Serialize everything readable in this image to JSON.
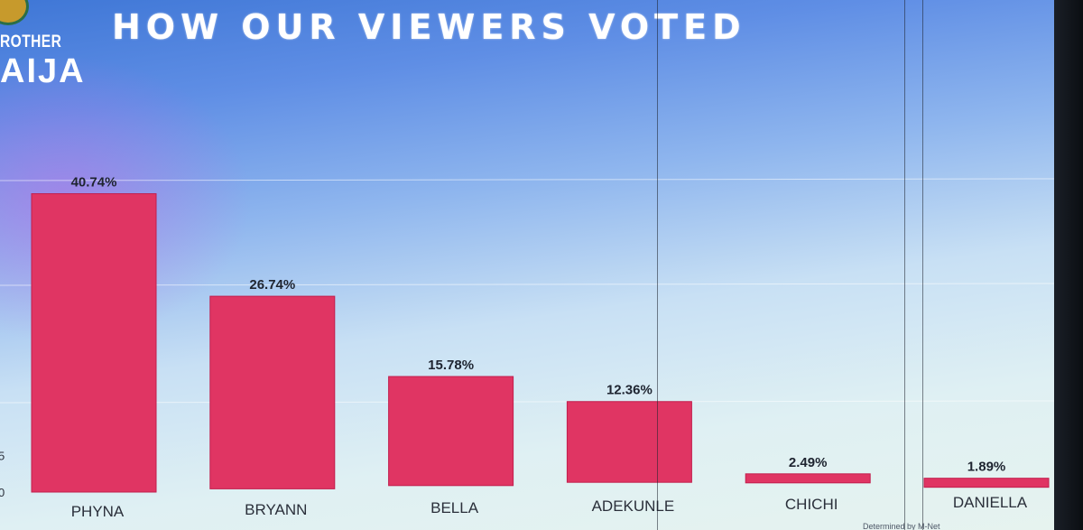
{
  "logo": {
    "line1": "ROTHER",
    "line2": "AIJA"
  },
  "title": "HOW OUR VIEWERS VOTED",
  "chart_data": {
    "type": "bar",
    "title": "HOW OUR VIEWERS VOTED",
    "categories": [
      "PHYNA",
      "BRYANN",
      "BELLA",
      "ADEKUNLE",
      "CHICHI",
      "DANIELLA"
    ],
    "values": [
      40.74,
      26.74,
      15.78,
      12.36,
      2.49,
      1.89
    ],
    "value_labels": [
      "40.74%",
      "26.74%",
      "15.78%",
      "12.36%",
      "2.49%",
      "1.89%"
    ],
    "ylim": [
      0,
      45
    ],
    "visible_ticks": [
      "5",
      "0"
    ],
    "bar_color": "#e03563",
    "grid": true,
    "legend": "none",
    "xlabel": "",
    "ylabel": ""
  },
  "footer": "Determined by M-Net"
}
